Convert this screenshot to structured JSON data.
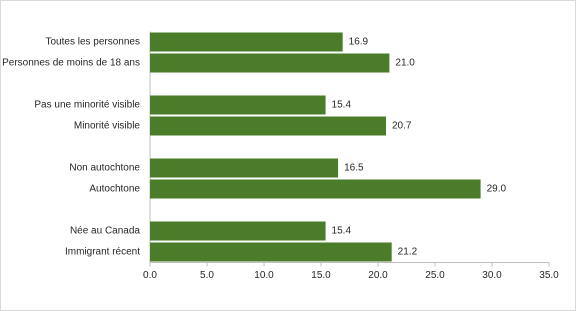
{
  "chart_data": {
    "type": "hbar",
    "categories": [
      "Toutes les personnes",
      "Personnes de moins de 18 ans",
      null,
      "Pas une minorité visible",
      "Minorité visible",
      null,
      "Non autochtone",
      "Autochtone",
      null,
      "Née au Canada",
      "Immigrant récent"
    ],
    "values": [
      16.9,
      21.0,
      null,
      15.4,
      20.7,
      null,
      16.5,
      29.0,
      null,
      15.4,
      21.2
    ],
    "value_labels": [
      "16.9",
      "21.0",
      null,
      "15.4",
      "20.7",
      null,
      "16.5",
      "29.0",
      null,
      "15.4",
      "21.2"
    ],
    "color": "#4a7c2a",
    "xlim": [
      0,
      35
    ],
    "xticks": [
      {
        "value": 0,
        "label": "0.0"
      },
      {
        "value": 5,
        "label": "5.0"
      },
      {
        "value": 10,
        "label": "10.0"
      },
      {
        "value": 15,
        "label": "15.0"
      },
      {
        "value": 20,
        "label": "20.0"
      },
      {
        "value": 25,
        "label": "25.0"
      },
      {
        "value": 30,
        "label": "30.0"
      },
      {
        "value": 35,
        "label": "35.0"
      }
    ]
  }
}
